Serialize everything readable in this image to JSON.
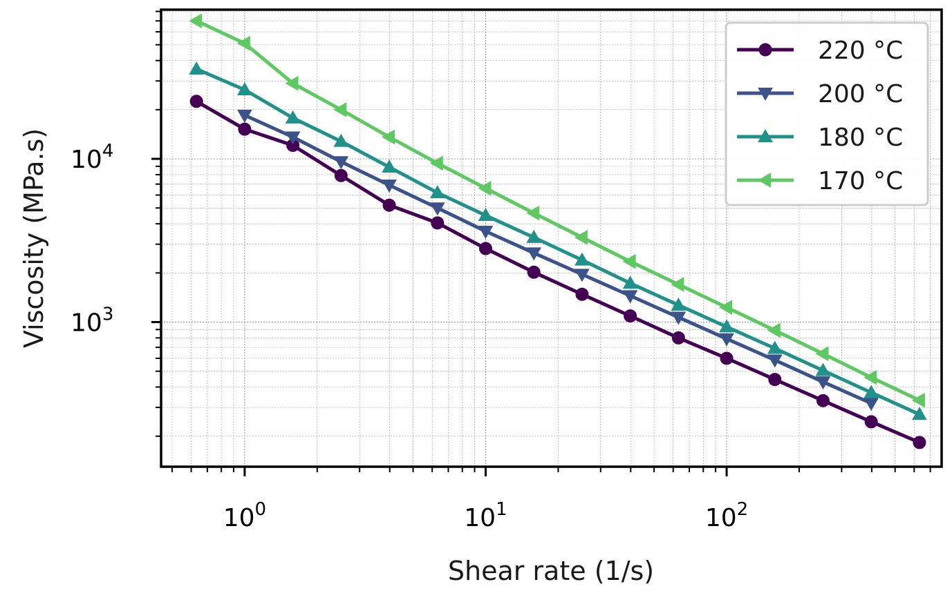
{
  "chart_data": {
    "type": "line",
    "title": "",
    "xlabel": "Shear rate (1/s)",
    "ylabel": "Viscosity (MPa.s)",
    "xscale": "log",
    "yscale": "log",
    "xlim": [
      0.45,
      780
    ],
    "ylim": [
      130,
      82000
    ],
    "grid": "on (major and minor)",
    "legend_placement": "top-right",
    "x_ticks": [
      {
        "base": "10",
        "exp": "0"
      },
      {
        "base": "10",
        "exp": "1"
      },
      {
        "base": "10",
        "exp": "2"
      }
    ],
    "y_ticks": [
      {
        "base": "10",
        "exp": "3"
      },
      {
        "base": "10",
        "exp": "4"
      }
    ],
    "x": [
      0.631,
      1.0,
      1.585,
      2.512,
      3.981,
      6.31,
      10.0,
      15.85,
      25.12,
      39.81,
      63.1,
      100.0,
      158.5,
      251.2,
      398.1,
      631.0
    ],
    "series": [
      {
        "name": "220 °C",
        "color": "#440154",
        "marker": "circle",
        "values": [
          22500,
          15200,
          12100,
          7900,
          5200,
          4050,
          2820,
          2020,
          1480,
          1090,
          800,
          600,
          445,
          330,
          245,
          183
        ]
      },
      {
        "name": "200 °C",
        "color": "#3b528b",
        "marker": "triangle-down",
        "values": [
          null,
          18500,
          13600,
          9600,
          6900,
          5000,
          3600,
          2650,
          1960,
          1450,
          1070,
          790,
          585,
          430,
          318,
          null
        ]
      },
      {
        "name": "180 °C",
        "color": "#21918c",
        "marker": "triangle-up",
        "values": [
          35500,
          26500,
          17800,
          12800,
          8900,
          6200,
          4500,
          3300,
          2400,
          1730,
          1270,
          935,
          690,
          505,
          370,
          272
        ]
      },
      {
        "name": "170 °C",
        "color": "#5ec962",
        "marker": "triangle-left",
        "values": [
          70000,
          51000,
          29000,
          20000,
          13600,
          9400,
          6600,
          4650,
          3300,
          2350,
          1700,
          1230,
          890,
          640,
          458,
          332
        ]
      }
    ]
  }
}
